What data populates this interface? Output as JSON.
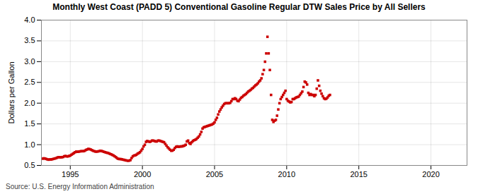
{
  "chart_data": {
    "type": "scatter",
    "title": "Monthly West Coast (PADD 5) Conventional Gasoline Regular DTW Sales Price by All Sellers",
    "ylabel": "Dollars per Gallon",
    "caption": "Source: U.S. Energy Information Administration",
    "color": "#cc0000",
    "marker": "square",
    "grid": true,
    "xlim": [
      1993.0,
      2022.5
    ],
    "ylim": [
      0.5,
      4.0
    ],
    "xticks": [
      1995,
      2000,
      2005,
      2010,
      2015,
      2020
    ],
    "yticks": [
      0.5,
      {
        "value": 1.0,
        "label": "1.0"
      },
      1.5,
      {
        "value": 2.0,
        "label": "2.0"
      },
      2.5,
      {
        "value": 3.0,
        "label": "3.0"
      },
      3.5,
      {
        "value": 4.0,
        "label": "4.0"
      }
    ],
    "x": [
      1993.083,
      1993.167,
      1993.25,
      1993.333,
      1993.417,
      1993.5,
      1993.583,
      1993.667,
      1993.75,
      1993.833,
      1993.917,
      1994.0,
      1994.083,
      1994.167,
      1994.25,
      1994.333,
      1994.417,
      1994.5,
      1994.583,
      1994.667,
      1994.75,
      1994.833,
      1994.917,
      1995.0,
      1995.083,
      1995.167,
      1995.25,
      1995.333,
      1995.417,
      1995.5,
      1995.583,
      1995.667,
      1995.75,
      1995.833,
      1995.917,
      1996.0,
      1996.083,
      1996.167,
      1996.25,
      1996.333,
      1996.417,
      1996.5,
      1996.583,
      1996.667,
      1996.75,
      1996.833,
      1996.917,
      1997.0,
      1997.083,
      1997.167,
      1997.25,
      1997.333,
      1997.417,
      1997.5,
      1997.583,
      1997.667,
      1997.75,
      1997.833,
      1997.917,
      1998.0,
      1998.083,
      1998.167,
      1998.25,
      1998.333,
      1998.417,
      1998.5,
      1998.583,
      1998.667,
      1998.75,
      1998.833,
      1998.917,
      1999.0,
      1999.083,
      1999.167,
      1999.25,
      1999.333,
      1999.417,
      1999.5,
      1999.583,
      1999.667,
      1999.75,
      1999.833,
      1999.917,
      2000.0,
      2000.083,
      2000.167,
      2000.25,
      2000.333,
      2000.417,
      2000.5,
      2000.583,
      2000.667,
      2000.75,
      2000.833,
      2000.917,
      2001.0,
      2001.083,
      2001.167,
      2001.25,
      2001.333,
      2001.417,
      2001.5,
      2001.583,
      2001.667,
      2001.75,
      2001.833,
      2001.917,
      2002.0,
      2002.083,
      2002.167,
      2002.25,
      2002.333,
      2002.417,
      2002.5,
      2002.583,
      2002.667,
      2002.75,
      2002.833,
      2002.917,
      2003.0,
      2003.083,
      2003.167,
      2003.25,
      2003.333,
      2003.417,
      2003.5,
      2003.583,
      2003.667,
      2003.75,
      2003.833,
      2003.917,
      2004.0,
      2004.083,
      2004.167,
      2004.25,
      2004.333,
      2004.417,
      2004.5,
      2004.583,
      2004.667,
      2004.75,
      2004.833,
      2004.917,
      2005.0,
      2005.083,
      2005.167,
      2005.25,
      2005.333,
      2005.417,
      2005.5,
      2005.583,
      2005.667,
      2005.75,
      2005.833,
      2005.917,
      2006.0,
      2006.083,
      2006.167,
      2006.25,
      2006.333,
      2006.417,
      2006.5,
      2006.583,
      2006.667,
      2006.75,
      2006.833,
      2006.917,
      2007.0,
      2007.083,
      2007.167,
      2007.25,
      2007.333,
      2007.417,
      2007.5,
      2007.583,
      2007.667,
      2007.75,
      2007.833,
      2007.917,
      2008.0,
      2008.083,
      2008.167,
      2008.25,
      2008.333,
      2008.417,
      2008.5,
      2008.583,
      2008.667,
      2008.75,
      2008.833,
      2008.917,
      2009.0,
      2009.083,
      2009.167,
      2009.25,
      2009.333,
      2009.417,
      2009.5,
      2009.583,
      2009.667,
      2009.75,
      2009.833,
      2009.917,
      2010.0,
      2010.083,
      2010.167,
      2010.25,
      2010.333,
      2010.417,
      2010.5,
      2010.583,
      2010.667,
      2010.75,
      2010.833,
      2010.917,
      2011.0,
      2011.083,
      2011.167,
      2011.25,
      2011.333,
      2011.417,
      2011.5,
      2011.583,
      2011.667,
      2011.75,
      2011.833,
      2011.917,
      2012.0,
      2012.083,
      2012.167,
      2012.25,
      2012.333,
      2012.417,
      2012.5,
      2012.583,
      2012.667,
      2012.75,
      2012.833,
      2012.917,
      2013.0
    ],
    "values": [
      0.663,
      0.671,
      0.666,
      0.656,
      0.645,
      0.638,
      0.645,
      0.643,
      0.649,
      0.658,
      0.666,
      0.673,
      0.686,
      0.698,
      0.699,
      0.694,
      0.698,
      0.703,
      0.72,
      0.728,
      0.718,
      0.718,
      0.728,
      0.738,
      0.758,
      0.778,
      0.798,
      0.818,
      0.833,
      0.828,
      0.833,
      0.838,
      0.843,
      0.843,
      0.843,
      0.853,
      0.873,
      0.883,
      0.898,
      0.893,
      0.883,
      0.868,
      0.853,
      0.843,
      0.833,
      0.833,
      0.838,
      0.843,
      0.853,
      0.848,
      0.838,
      0.828,
      0.818,
      0.808,
      0.803,
      0.793,
      0.778,
      0.768,
      0.753,
      0.738,
      0.718,
      0.698,
      0.673,
      0.658,
      0.653,
      0.653,
      0.646,
      0.638,
      0.633,
      0.623,
      0.618,
      0.613,
      0.616,
      0.628,
      0.678,
      0.718,
      0.738,
      0.743,
      0.758,
      0.783,
      0.798,
      0.818,
      0.858,
      0.898,
      0.958,
      0.998,
      1.068,
      1.088,
      1.078,
      1.068,
      1.078,
      1.098,
      1.098,
      1.088,
      1.078,
      1.078,
      1.098,
      1.098,
      1.088,
      1.078,
      1.068,
      1.058,
      1.018,
      0.978,
      0.938,
      0.908,
      0.878,
      0.853,
      0.858,
      0.878,
      0.918,
      0.948,
      0.958,
      0.948,
      0.953,
      0.958,
      0.958,
      0.968,
      0.978,
      0.998,
      1.078,
      1.098,
      1.038,
      1.018,
      1.058,
      1.088,
      1.108,
      1.118,
      1.138,
      1.168,
      1.198,
      1.248,
      1.308,
      1.388,
      1.418,
      1.428,
      1.438,
      1.448,
      1.458,
      1.468,
      1.478,
      1.488,
      1.508,
      1.538,
      1.598,
      1.648,
      1.728,
      1.798,
      1.848,
      1.898,
      1.938,
      1.978,
      1.998,
      1.998,
      1.998,
      1.998,
      2.008,
      2.048,
      2.098,
      2.098,
      2.118,
      2.098,
      2.058,
      2.048,
      2.088,
      2.128,
      2.148,
      2.178,
      2.198,
      2.218,
      2.248,
      2.278,
      2.298,
      2.318,
      2.348,
      2.368,
      2.398,
      2.428,
      2.448,
      2.478,
      2.518,
      2.548,
      2.598,
      2.698,
      2.798,
      2.998,
      3.198,
      3.598,
      3.198,
      2.798,
      2.198,
      1.598,
      1.548,
      1.578,
      1.598,
      1.698,
      1.848,
      1.998,
      2.098,
      2.148,
      2.198,
      2.248,
      2.298,
      2.098,
      2.058,
      2.038,
      2.018,
      2.028,
      2.098,
      2.098,
      2.118,
      2.138,
      2.148,
      2.158,
      2.198,
      2.238,
      2.278,
      2.388,
      2.518,
      2.498,
      2.448,
      2.248,
      2.198,
      2.218,
      2.198,
      2.198,
      2.168,
      2.198,
      2.348,
      2.548,
      2.418,
      2.298,
      2.228,
      2.168,
      2.118,
      2.098,
      2.108,
      2.138,
      2.178,
      2.198
    ]
  }
}
